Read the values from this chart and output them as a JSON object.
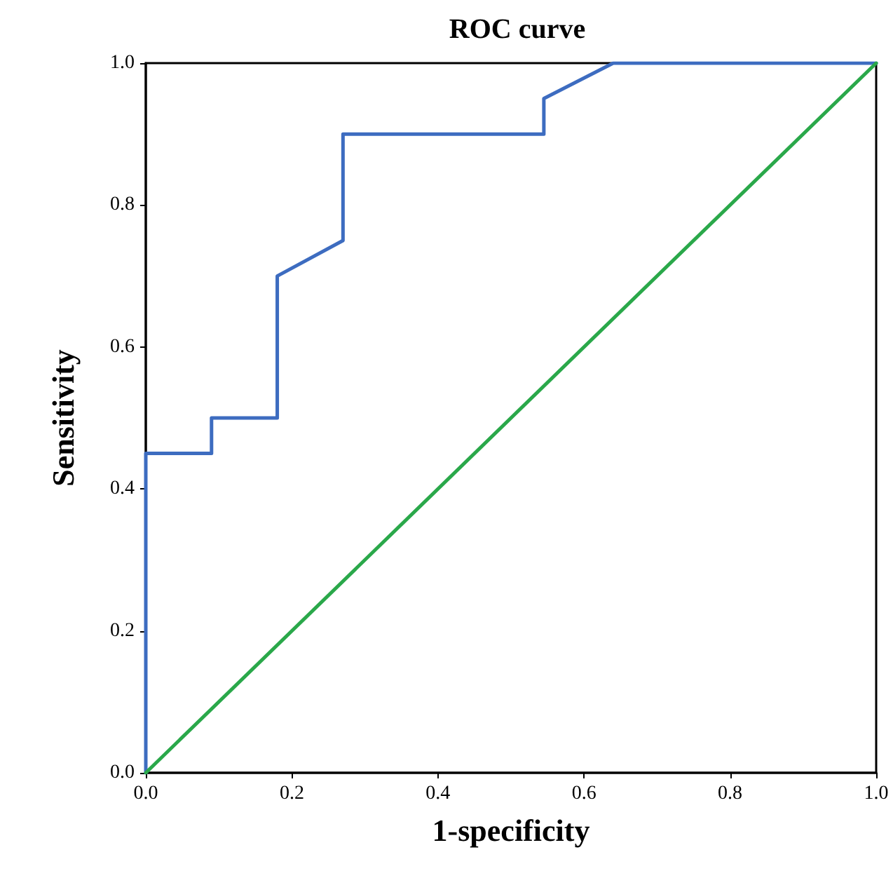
{
  "chart_data": {
    "type": "line",
    "title": "ROC curve",
    "xlabel": "1-specificity",
    "ylabel": "Sensitivity",
    "series": [
      {
        "color": "#3d6cc0",
        "x": [
          0,
          0,
          0.09,
          0.09,
          0.18,
          0.18,
          0.27,
          0.27,
          0.545,
          0.545,
          0.64,
          1
        ],
        "values": [
          0,
          0.45,
          0.45,
          0.5,
          0.5,
          0.7,
          0.75,
          0.9,
          0.9,
          0.95,
          1,
          1
        ]
      },
      {
        "color": "#2aa84a",
        "x": [
          0,
          1
        ],
        "values": [
          0,
          1
        ]
      }
    ],
    "xlim": [
      0,
      1
    ],
    "ylim": [
      0,
      1
    ],
    "xticks": [
      {
        "value": 0,
        "label": "0.0"
      },
      {
        "value": 0.2,
        "label": "0.2"
      },
      {
        "value": 0.4,
        "label": "0.4"
      },
      {
        "value": 0.6,
        "label": "0.6"
      },
      {
        "value": 0.8,
        "label": "0.8"
      },
      {
        "value": 1,
        "label": "1.0"
      }
    ],
    "yticks": [
      {
        "value": 0,
        "label": "0.0"
      },
      {
        "value": 0.2,
        "label": "0.2"
      },
      {
        "value": 0.4,
        "label": "0.4"
      },
      {
        "value": 0.6,
        "label": "0.6"
      },
      {
        "value": 0.8,
        "label": "0.8"
      },
      {
        "value": 1,
        "label": "1.0"
      }
    ],
    "grid": false,
    "marker": "none",
    "line_style": "solid"
  }
}
